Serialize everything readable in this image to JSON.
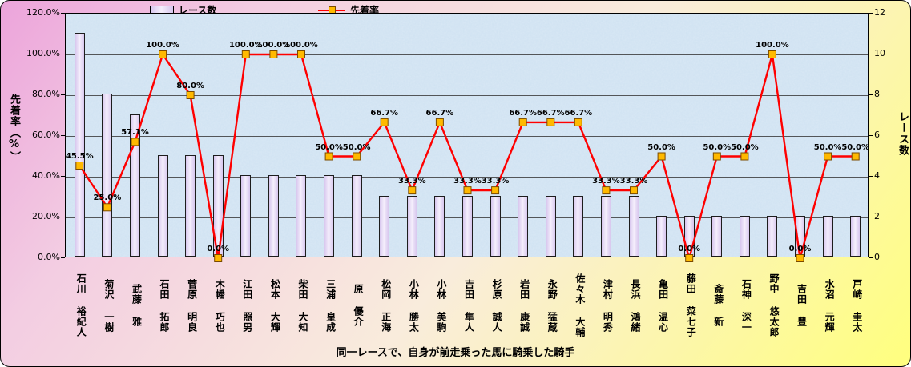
{
  "chart_data": {
    "type": "bar",
    "combo": "bar+line",
    "title": "同一レースで、自身が前走乗った馬に騎乗した騎手",
    "legend": [
      "レース数",
      "先着率"
    ],
    "legend_position": "top",
    "grid": true,
    "categories": [
      "石川 裕紀人",
      "菊沢 一樹",
      "武藤 雅",
      "石田 拓郎",
      "菅原 明良",
      "木幡 巧也",
      "江田 照男",
      "松本 大輝",
      "柴田 大知",
      "三浦 皇成",
      "原 優介",
      "松岡 正海",
      "小林 勝太",
      "小林 美駒",
      "吉田 隼人",
      "杉原 誠人",
      "岩田 康誠",
      "永野 猛蔵",
      "佐々木 大輔",
      "津村 明秀",
      "長浜 鴻緒",
      "亀田 温心",
      "藤田 菜七子",
      "斎藤 新",
      "石神 深一",
      "野中 悠太郎",
      "吉田 豊",
      "水沼 元輝",
      "戸崎 圭太"
    ],
    "series": [
      {
        "name": "レース数",
        "type": "bar",
        "axis": "right",
        "values": [
          11,
          8,
          7,
          5,
          5,
          5,
          4,
          4,
          4,
          4,
          4,
          3,
          3,
          3,
          3,
          3,
          3,
          3,
          3,
          3,
          3,
          2,
          2,
          2,
          2,
          2,
          2,
          2,
          2
        ]
      },
      {
        "name": "先着率",
        "type": "line",
        "axis": "left",
        "values_pct": [
          45.5,
          25.0,
          57.1,
          100.0,
          80.0,
          0.0,
          100.0,
          100.0,
          100.0,
          50.0,
          50.0,
          66.7,
          33.3,
          66.7,
          33.3,
          33.3,
          66.7,
          66.7,
          66.7,
          33.3,
          33.3,
          50.0,
          0.0,
          50.0,
          50.0,
          100.0,
          0.0,
          50.0,
          50.0
        ],
        "labels": [
          "45.5%",
          "25.0%",
          "57.1%",
          "100.0%",
          "80.0%",
          "0.0%",
          "100.0%",
          "100.0%",
          "100.0%",
          "50.0%",
          "50.0%",
          "66.7%",
          "33.3%",
          "66.7%",
          "33.3%",
          "33.3%",
          "66.7%",
          "66.7%",
          "66.7%",
          "33.3%",
          "33.3%",
          "50.0%",
          "0.0%",
          "50.0%",
          "50.0%",
          "100.0%",
          "0.0%",
          "50.0%",
          "50.0%"
        ]
      }
    ],
    "left_axis": {
      "title": "先着率（%）",
      "min": 0,
      "max": 120,
      "ticks": [
        "0.0%",
        "20.0%",
        "40.0%",
        "60.0%",
        "80.0%",
        "100.0%",
        "120.0%"
      ]
    },
    "right_axis": {
      "title": "レース数",
      "min": 0,
      "max": 12,
      "ticks": [
        "0",
        "2",
        "4",
        "6",
        "8",
        "10",
        "12"
      ]
    }
  },
  "colors": {
    "line": "#ff0000",
    "marker_fill": "#ffb900",
    "marker_border": "#7a4a00",
    "bar_fill": "#e3d7f5",
    "bar_border": "#1d1d1d",
    "plot_bg": "#cfe2f2",
    "gridline": "#3c3c3c",
    "bg_gradient_start": "#eca4db",
    "bg_gradient_end": "#ffff7e"
  }
}
